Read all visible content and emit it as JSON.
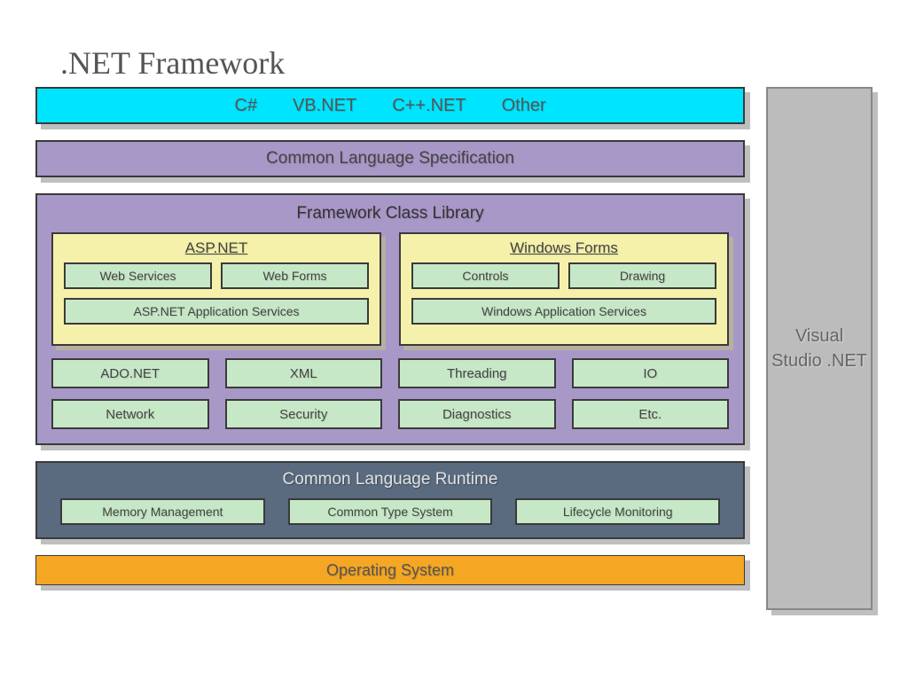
{
  "title": ".NET Framework",
  "colors": {
    "languages_bg": "#00e5ff",
    "purple_bg": "#a898c7",
    "yellow_bg": "#f5f1aa",
    "green_bg": "#c7e8c7",
    "slate_bg": "#5a6a7f",
    "orange_bg": "#f5a623",
    "gray_bg": "#bcbcbc",
    "shadow": "#bfbfbf",
    "border": "#3a3a3a"
  },
  "languages": {
    "items": [
      "C#",
      "VB.NET",
      "C++.NET",
      "Other"
    ]
  },
  "cls": {
    "label": "Common Language Specification"
  },
  "fcl": {
    "title": "Framework Class Library",
    "aspnet": {
      "title": "ASP.NET",
      "top": [
        "Web Services",
        "Web Forms"
      ],
      "bottom": "ASP.NET Application Services"
    },
    "winforms": {
      "title": "Windows Forms",
      "top": [
        "Controls",
        "Drawing"
      ],
      "bottom": "Windows Application Services"
    },
    "base": [
      "ADO.NET",
      "XML",
      "Threading",
      "IO",
      "Network",
      "Security",
      "Diagnostics",
      "Etc."
    ]
  },
  "clr": {
    "title": "Common Language Runtime",
    "items": [
      "Memory Management",
      "Common Type System",
      "Lifecycle Monitoring"
    ]
  },
  "os": {
    "label": "Operating System"
  },
  "vs": {
    "label": "Visual Studio .NET"
  }
}
